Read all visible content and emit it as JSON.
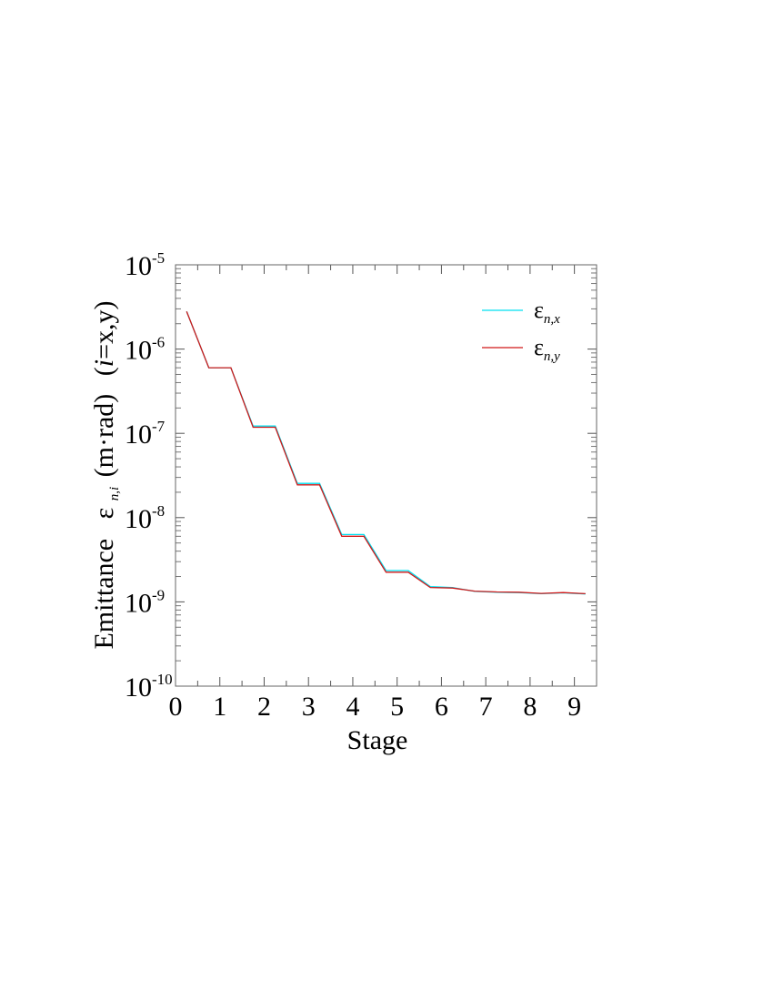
{
  "chart_data": {
    "type": "line",
    "xlabel": "Stage",
    "ylabel": {
      "prefix": "Emittance",
      "symbol": "ε",
      "subscript": "n,i",
      "unit": "(m·rad)",
      "suffix_var": "i",
      "suffix_rest": "=x,y"
    },
    "xlim": [
      0,
      9.5
    ],
    "ylim": [
      1e-10,
      1e-05
    ],
    "yscale": "log",
    "x_ticks": [
      "0",
      "1",
      "2",
      "3",
      "4",
      "5",
      "6",
      "7",
      "8",
      "9"
    ],
    "y_ticks": [
      {
        "base": "10",
        "exp": "-10"
      },
      {
        "base": "10",
        "exp": "-9"
      },
      {
        "base": "10",
        "exp": "-8"
      },
      {
        "base": "10",
        "exp": "-7"
      },
      {
        "base": "10",
        "exp": "-6"
      },
      {
        "base": "10",
        "exp": "-5"
      }
    ],
    "legend_position": "top-right",
    "series": [
      {
        "name": "ε_{n,x}",
        "label_symbol": "ε",
        "label_sub": "n,x",
        "color": "#00e0f0",
        "x": [
          0.25,
          0.75,
          1.25,
          1.75,
          2.25,
          2.75,
          3.25,
          3.75,
          4.25,
          4.75,
          5.25,
          5.75,
          6.25,
          6.75,
          7.25,
          7.75,
          8.25,
          8.75,
          9.25
        ],
        "y": [
          2.8e-06,
          6e-07,
          6e-07,
          1.22e-07,
          1.22e-07,
          2.55e-08,
          2.55e-08,
          6.3e-09,
          6.3e-09,
          2.35e-09,
          2.35e-09,
          1.52e-09,
          1.48e-09,
          1.33e-09,
          1.3e-09,
          1.29e-09,
          1.25e-09,
          1.28e-09,
          1.24e-09
        ]
      },
      {
        "name": "ε_{n,y}",
        "label_symbol": "ε",
        "label_sub": "n,y",
        "color": "#d01818",
        "x": [
          0.25,
          0.75,
          1.25,
          1.75,
          2.25,
          2.75,
          3.25,
          3.75,
          4.25,
          4.75,
          5.25,
          5.75,
          6.25,
          6.75,
          7.25,
          7.75,
          8.25,
          8.75,
          9.25
        ],
        "y": [
          2.8e-06,
          6e-07,
          6e-07,
          1.18e-07,
          1.18e-07,
          2.45e-08,
          2.45e-08,
          6e-09,
          6e-09,
          2.25e-09,
          2.25e-09,
          1.48e-09,
          1.46e-09,
          1.34e-09,
          1.31e-09,
          1.3e-09,
          1.26e-09,
          1.29e-09,
          1.25e-09
        ]
      }
    ]
  }
}
